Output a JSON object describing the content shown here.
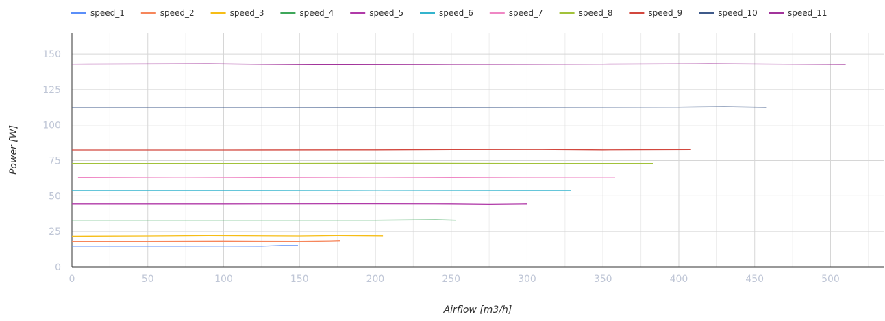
{
  "chart_data": {
    "type": "line",
    "title": "",
    "xlabel": "Airflow [m3/h]",
    "ylabel": "Power [W]",
    "xlim": [
      0,
      535
    ],
    "ylim": [
      0,
      165
    ],
    "x_ticks": [
      0,
      50,
      100,
      150,
      200,
      250,
      300,
      350,
      400,
      450,
      500
    ],
    "y_ticks": [
      0,
      25,
      50,
      75,
      100,
      125,
      150
    ],
    "grid": true,
    "minor_grid": true,
    "legend_position": "top",
    "series": [
      {
        "name": "speed_1",
        "color": "#5b8ff9",
        "points": [
          [
            0,
            14.5
          ],
          [
            50,
            14.5
          ],
          [
            100,
            14.6
          ],
          [
            125,
            14.5
          ],
          [
            138,
            15
          ],
          [
            149,
            15
          ]
        ]
      },
      {
        "name": "speed_2",
        "color": "#f6865b",
        "points": [
          [
            0,
            18
          ],
          [
            50,
            18
          ],
          [
            100,
            18.2
          ],
          [
            150,
            18
          ],
          [
            170,
            18.3
          ],
          [
            177,
            18.5
          ]
        ]
      },
      {
        "name": "speed_3",
        "color": "#f6bd16",
        "points": [
          [
            0,
            21.5
          ],
          [
            50,
            21.7
          ],
          [
            90,
            22
          ],
          [
            150,
            21.7
          ],
          [
            175,
            22
          ],
          [
            205,
            21.8
          ]
        ]
      },
      {
        "name": "speed_4",
        "color": "#3ea75a",
        "points": [
          [
            0,
            33
          ],
          [
            100,
            33
          ],
          [
            200,
            33
          ],
          [
            240,
            33.2
          ],
          [
            253,
            33
          ]
        ]
      },
      {
        "name": "speed_5",
        "color": "#b03aa8",
        "points": [
          [
            0,
            44.5
          ],
          [
            100,
            44.5
          ],
          [
            200,
            44.6
          ],
          [
            250,
            44.5
          ],
          [
            275,
            44.2
          ],
          [
            300,
            44.5
          ]
        ]
      },
      {
        "name": "speed_6",
        "color": "#34b4cd",
        "points": [
          [
            0,
            54
          ],
          [
            100,
            54
          ],
          [
            200,
            54.1
          ],
          [
            300,
            54
          ],
          [
            329,
            54
          ]
        ]
      },
      {
        "name": "speed_7",
        "color": "#ef87c4",
        "points": [
          [
            4,
            63
          ],
          [
            75,
            63.3
          ],
          [
            125,
            63
          ],
          [
            200,
            63.3
          ],
          [
            250,
            63
          ],
          [
            300,
            63.2
          ],
          [
            358,
            63.3
          ]
        ]
      },
      {
        "name": "speed_8",
        "color": "#a2c23a",
        "points": [
          [
            0,
            73
          ],
          [
            100,
            73
          ],
          [
            200,
            73.2
          ],
          [
            300,
            73
          ],
          [
            383,
            73
          ]
        ]
      },
      {
        "name": "speed_9",
        "color": "#d2473e",
        "points": [
          [
            0,
            82.5
          ],
          [
            100,
            82.5
          ],
          [
            200,
            82.6
          ],
          [
            250,
            82.8
          ],
          [
            310,
            82.9
          ],
          [
            350,
            82.6
          ],
          [
            408,
            82.8
          ]
        ]
      },
      {
        "name": "speed_10",
        "color": "#3f5a8a",
        "points": [
          [
            0,
            112.5
          ],
          [
            100,
            112.5
          ],
          [
            200,
            112.4
          ],
          [
            300,
            112.5
          ],
          [
            400,
            112.6
          ],
          [
            430,
            112.8
          ],
          [
            458,
            112.5
          ]
        ]
      },
      {
        "name": "speed_11",
        "color": "#a2349b",
        "points": [
          [
            0,
            143
          ],
          [
            90,
            143.2
          ],
          [
            160,
            142.6
          ],
          [
            250,
            142.8
          ],
          [
            350,
            143
          ],
          [
            420,
            143.2
          ],
          [
            510,
            142.8
          ]
        ]
      }
    ]
  }
}
